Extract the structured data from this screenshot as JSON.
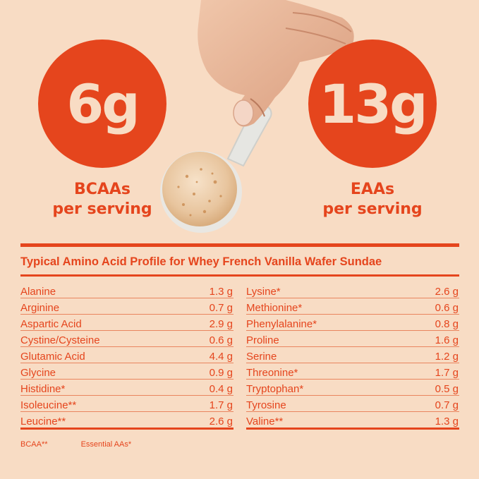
{
  "bcaa": {
    "value": "6g",
    "caption_line1": "BCAAs",
    "caption_line2": "per serving"
  },
  "eaa": {
    "value": "13g",
    "caption_line1": "EAAs",
    "caption_line2": "per serving"
  },
  "profile": {
    "title": "Typical Amino Acid Profile for Whey French Vanilla Wafer Sundae",
    "left": [
      {
        "name": "Alanine",
        "value": "1.3 g"
      },
      {
        "name": "Arginine",
        "value": "0.7 g"
      },
      {
        "name": "Aspartic Acid",
        "value": "2.9 g"
      },
      {
        "name": "Cystine/Cysteine",
        "value": "0.6 g"
      },
      {
        "name": "Glutamic Acid",
        "value": "4.4 g"
      },
      {
        "name": "Glycine",
        "value": "0.9 g"
      },
      {
        "name": "Histidine*",
        "value": "0.4 g"
      },
      {
        "name": "Isoleucine**",
        "value": "1.7 g"
      },
      {
        "name": "Leucine**",
        "value": "2.6 g"
      }
    ],
    "right": [
      {
        "name": "Lysine*",
        "value": "2.6 g"
      },
      {
        "name": "Methionine*",
        "value": "0.6 g"
      },
      {
        "name": "Phenylalanine*",
        "value": "0.8 g"
      },
      {
        "name": "Proline",
        "value": "1.6 g"
      },
      {
        "name": "Serine",
        "value": "1.2 g"
      },
      {
        "name": "Threonine*",
        "value": "1.7 g"
      },
      {
        "name": "Tryptophan*",
        "value": "0.5 g"
      },
      {
        "name": "Tyrosine",
        "value": "0.7 g"
      },
      {
        "name": "Valine**",
        "value": "1.3 g"
      }
    ]
  },
  "legend": {
    "bcaa": "BCAA**",
    "essential": "Essential AAs*"
  },
  "colors": {
    "accent": "#e5451d",
    "background": "#f8dcc4"
  },
  "icons": [
    "hand-holding-scoop-image"
  ]
}
